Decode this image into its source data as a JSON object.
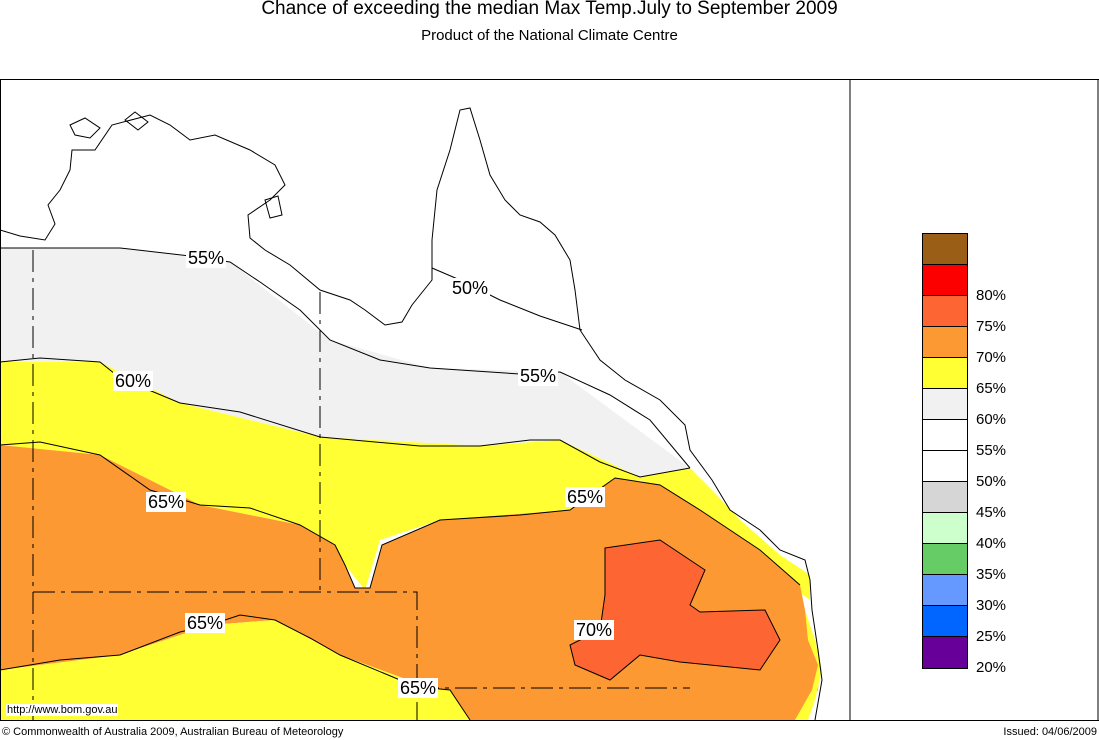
{
  "header": {
    "title": "Chance of exceeding the median Max Temp.July to September 2009",
    "subtitle": "Product of the National Climate Centre"
  },
  "map": {
    "region": "Northern and eastern Australia (NT and Queensland)",
    "contour_labels": [
      {
        "text": "55%"
      },
      {
        "text": "50%"
      },
      {
        "text": "60%"
      },
      {
        "text": "55%"
      },
      {
        "text": "65%"
      },
      {
        "text": "65%"
      },
      {
        "text": "65%"
      },
      {
        "text": "70%"
      },
      {
        "text": "65%"
      }
    ],
    "zone_colors": {
      "ocean": "#ffffff",
      "band_50": "#ffffff",
      "band_55": "#f1f1f1",
      "band_60": "#ffff33",
      "band_65": "#fd9933",
      "band_70": "#fd6633"
    }
  },
  "legend": {
    "items": [
      {
        "label": "",
        "color": "#9a5e17"
      },
      {
        "label": "80%",
        "color": "#fc0000"
      },
      {
        "label": "75%",
        "color": "#fd6633"
      },
      {
        "label": "70%",
        "color": "#fd9933"
      },
      {
        "label": "65%",
        "color": "#ffff33"
      },
      {
        "label": "60%",
        "color": "#f1f1f1"
      },
      {
        "label": "55%",
        "color": "#ffffff"
      },
      {
        "label": "50%",
        "color": "#ffffff"
      },
      {
        "label": "45%",
        "color": "#d6d6d6"
      },
      {
        "label": "40%",
        "color": "#ccffcc"
      },
      {
        "label": "35%",
        "color": "#66cc66"
      },
      {
        "label": "30%",
        "color": "#6699ff"
      },
      {
        "label": "25%",
        "color": "#0066ff"
      },
      {
        "label": "20%",
        "color": "#660099"
      }
    ]
  },
  "footer": {
    "website": "http://www.bom.gov.au",
    "copyright": "© Commonwealth of Australia 2009, Australian Bureau of Meteorology",
    "issued": "Issued: 04/06/2009"
  }
}
